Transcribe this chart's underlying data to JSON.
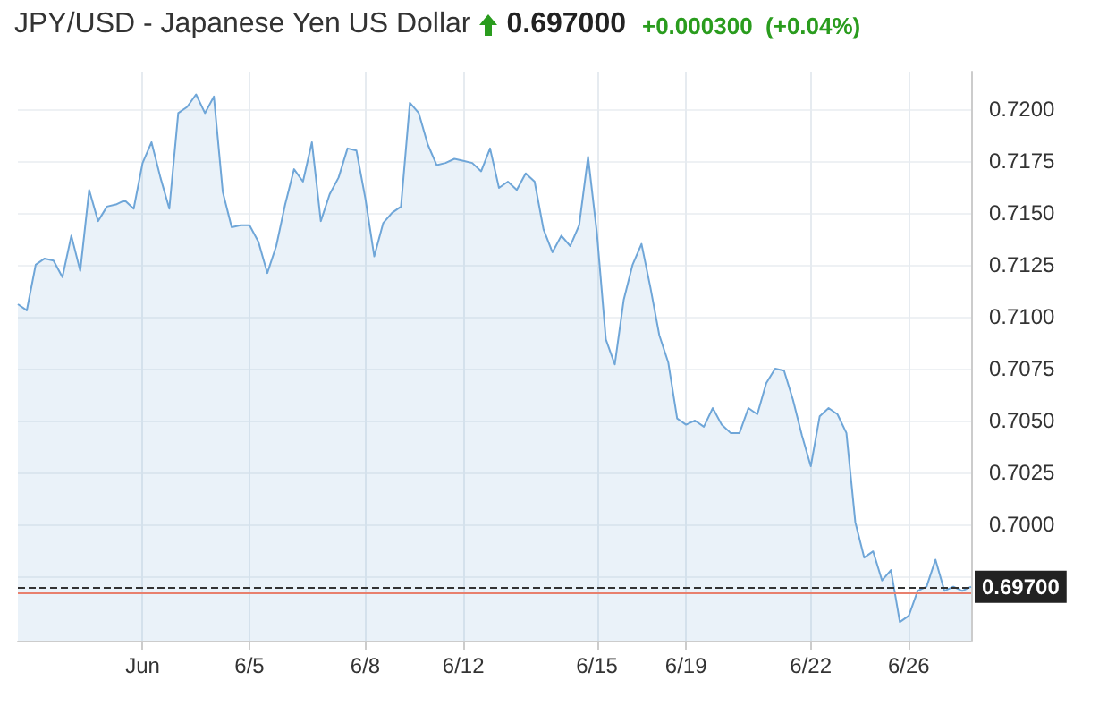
{
  "chart_data": {
    "type": "area",
    "title": "JPY/USD - Japanese Yen US Dollar",
    "annotations": [
      "0.697000",
      "+0.000300  (+0.04%)"
    ],
    "categories": [
      null,
      null,
      null,
      null,
      null,
      null,
      null,
      null,
      null,
      null,
      null,
      null,
      null,
      null,
      "Jun",
      null,
      null,
      null,
      null,
      null,
      null,
      null,
      null,
      null,
      null,
      null,
      "6/5",
      null,
      null,
      null,
      null,
      null,
      null,
      null,
      null,
      null,
      null,
      null,
      null,
      "6/8",
      null,
      null,
      null,
      null,
      null,
      null,
      null,
      null,
      null,
      null,
      "6/12",
      null,
      null,
      null,
      null,
      null,
      null,
      null,
      null,
      null,
      null,
      null,
      null,
      null,
      null,
      "6/15",
      null,
      null,
      null,
      null,
      null,
      null,
      null,
      null,
      null,
      "6/19",
      null,
      null,
      null,
      null,
      null,
      null,
      null,
      null,
      null,
      null,
      null,
      null,
      null,
      "6/22",
      null,
      null,
      null,
      null,
      null,
      null,
      null,
      null,
      null,
      null,
      "6/26",
      null,
      null,
      null,
      null,
      null,
      null,
      null
    ],
    "series": [
      {
        "color": "#6fa6d8",
        "values": [
          0.7106,
          0.7103,
          0.7125,
          0.7128,
          0.7127,
          0.7119,
          0.7139,
          0.7122,
          0.7161,
          0.7146,
          0.7153,
          0.7154,
          0.7156,
          0.7152,
          0.7174,
          0.7184,
          0.7167,
          0.7152,
          0.7198,
          0.7201,
          0.7207,
          0.7198,
          0.7206,
          0.716,
          0.7143,
          0.7144,
          0.7144,
          0.7136,
          0.7121,
          0.7134,
          0.7154,
          0.7171,
          0.7165,
          0.7184,
          0.7146,
          0.7159,
          0.7167,
          0.7181,
          0.718,
          0.7157,
          0.7129,
          0.7145,
          0.715,
          0.7153,
          0.7203,
          0.7198,
          0.7183,
          0.7173,
          0.7174,
          0.7176,
          0.7175,
          0.7174,
          0.717,
          0.7181,
          0.7162,
          0.7165,
          0.7161,
          0.7169,
          0.7165,
          0.7142,
          0.7131,
          0.7139,
          0.7134,
          0.7144,
          0.7177,
          0.714,
          0.7089,
          0.7077,
          0.7108,
          0.7125,
          0.7135,
          0.7114,
          0.7091,
          0.7078,
          0.7051,
          0.7048,
          0.705,
          0.7047,
          0.7056,
          0.7048,
          0.7044,
          0.7044,
          0.7056,
          0.7053,
          0.7068,
          0.7075,
          0.7074,
          0.706,
          0.7043,
          0.7028,
          0.7052,
          0.7056,
          0.7053,
          0.7044,
          0.7001,
          0.6984,
          0.6987,
          0.6973,
          0.6978,
          0.6953,
          0.6956,
          0.6968,
          0.697,
          0.6983,
          0.6968,
          0.697,
          0.6968,
          0.697
        ]
      }
    ],
    "ylim": [
      0.6944,
      0.7218
    ],
    "yticks": [
      {
        "value": 0.6975,
        "label": null
      },
      {
        "value": 0.7,
        "label": "0.7000"
      },
      {
        "value": 0.7025,
        "label": "0.7025"
      },
      {
        "value": 0.705,
        "label": "0.7050"
      },
      {
        "value": 0.7075,
        "label": "0.7075"
      },
      {
        "value": 0.71,
        "label": "0.7100"
      },
      {
        "value": 0.7125,
        "label": "0.7125"
      },
      {
        "value": 0.715,
        "label": "0.7150"
      },
      {
        "value": 0.7175,
        "label": "0.7175"
      },
      {
        "value": 0.72,
        "label": "0.7200"
      }
    ],
    "grid": true,
    "marker": "none",
    "ref_lines": [
      {
        "axis": "y",
        "value": 0.697,
        "label": "0.69700",
        "line_style": "dashed",
        "color": "#333333"
      },
      {
        "axis": "y",
        "value": 0.6967,
        "color": "#e8806e"
      }
    ]
  }
}
